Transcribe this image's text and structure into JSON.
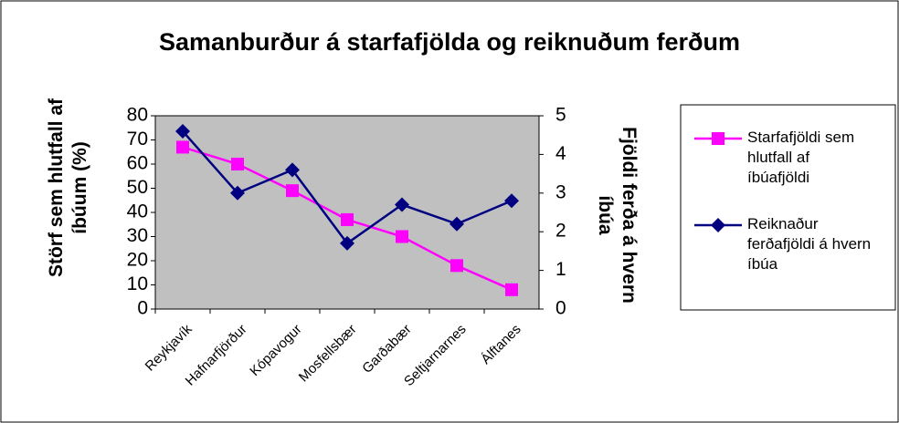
{
  "chart_data": {
    "type": "line",
    "title": "Samanburður á starfafjölda og reiknuðum ferðum",
    "y_label": "Störf sem hlutfall af íbúum (%)",
    "y2_label": "Fjöldi ferða á hvern íbúa",
    "categories": [
      "Reykjavík",
      "Hafnarfjörður",
      "Kópavogur",
      "Mosfellsbær",
      "Garðabær",
      "Seltjarnarnes",
      "Álftanes"
    ],
    "series": [
      {
        "name": "Starfafjöldi sem hlutfall af íbúafjöldi",
        "color": "#ff00ff",
        "marker": "square",
        "values": [
          67,
          60,
          49,
          37,
          30,
          18,
          8
        ]
      },
      {
        "name": "Reiknaður ferðafjöldi á hvern íbúa",
        "color": "#000080",
        "marker": "diamond",
        "axis": "y2",
        "values": [
          4.6,
          3.0,
          3.6,
          1.7,
          2.7,
          2.2,
          2.8
        ]
      }
    ],
    "ylim": [
      0,
      80
    ],
    "yticks": [
      0,
      10,
      20,
      30,
      40,
      50,
      60,
      70,
      80
    ],
    "y2lim": [
      0,
      5
    ],
    "y2ticks": [
      0,
      1,
      2,
      3,
      4,
      5
    ],
    "plot_background": "#c0c0c0",
    "legend": "right"
  }
}
